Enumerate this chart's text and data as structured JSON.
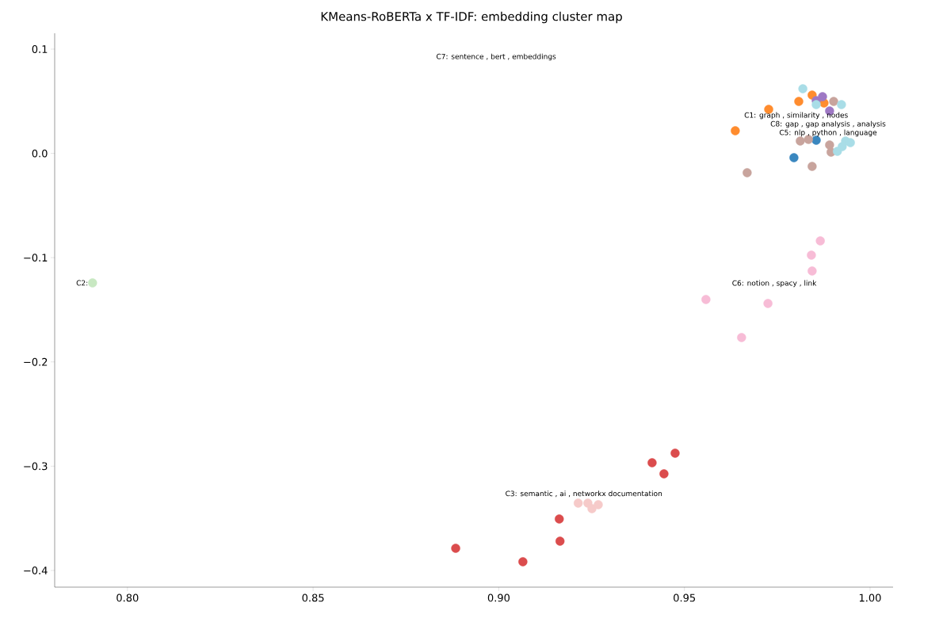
{
  "chart_data": {
    "type": "scatter",
    "title": "KMeans-RoBERTa x TF-IDF: embedding cluster map",
    "xlim": [
      0.7804,
      1.0062
    ],
    "ylim": [
      -0.416,
      0.1152
    ],
    "xticks": [
      {
        "value": 0.8,
        "label": "0.80"
      },
      {
        "value": 0.85,
        "label": "0.85"
      },
      {
        "value": 0.9,
        "label": "0.90"
      },
      {
        "value": 0.95,
        "label": "0.95"
      },
      {
        "value": 1.0,
        "label": "1.00"
      }
    ],
    "yticks": [
      {
        "value": -0.4,
        "label": "−0.4"
      },
      {
        "value": -0.3,
        "label": "−0.3"
      },
      {
        "value": -0.2,
        "label": "−0.2"
      },
      {
        "value": -0.1,
        "label": "−0.1"
      },
      {
        "value": 0.0,
        "label": "0.0"
      },
      {
        "value": 0.1,
        "label": "0.1"
      }
    ],
    "marker": "circle",
    "grid": false,
    "series": [
      {
        "color": "#db4c4d",
        "x": [
          0.9163,
          0.9165,
          0.8884,
          0.9065,
          0.9413,
          0.9475,
          0.9445
        ],
        "values": [
          -0.3506,
          -0.3719,
          -0.3787,
          -0.3916,
          -0.2967,
          -0.2875,
          -0.3073
        ]
      },
      {
        "color": "#f6cac9",
        "x": [
          0.9214,
          0.924,
          0.9251,
          0.9268
        ],
        "values": [
          -0.3354,
          -0.3354,
          -0.3407,
          -0.3369
        ]
      },
      {
        "color": "#f7bcd6",
        "x": [
          0.9866,
          0.9842,
          0.9844,
          0.9558,
          0.9725,
          0.9654
        ],
        "values": [
          -0.0839,
          -0.0976,
          -0.1128,
          -0.1401,
          -0.1439,
          -0.1766
        ]
      },
      {
        "color": "#c8e8c2",
        "x": [
          0.7906
        ],
        "values": [
          -0.1242
        ]
      },
      {
        "color": "#ff8c2e",
        "x": [
          0.9808,
          0.9844,
          0.9727,
          0.9637,
          0.9876
        ],
        "values": [
          0.0498,
          0.0559,
          0.0422,
          0.0217,
          0.0483
        ]
      },
      {
        "color": "#3a87bf",
        "x": [
          0.9795,
          0.9855
        ],
        "values": [
          -0.0041,
          0.0126
        ]
      },
      {
        "color": "#9e78c4",
        "x": [
          0.9872,
          0.9855,
          0.9891
        ],
        "values": [
          0.0544,
          0.0506,
          0.0407
        ]
      },
      {
        "color": "#c8a49d",
        "x": [
          0.9891,
          0.9895,
          0.9812,
          0.9834,
          0.9902,
          0.9669,
          0.9844
        ],
        "values": [
          0.0081,
          0.0012,
          0.0119,
          0.0134,
          0.0498,
          -0.0185,
          -0.0125
        ]
      },
      {
        "color": "#a9dde7",
        "x": [
          0.9819,
          0.9923,
          0.9855,
          0.9934,
          0.9912,
          0.9947,
          0.9925
        ],
        "values": [
          0.062,
          0.0468,
          0.0468,
          0.0119,
          0.002,
          0.0103,
          0.0065
        ]
      }
    ],
    "annotations": [
      "C7: sentence ,  bert ,  embeddings",
      "C6: notion ,  spacy ,  link",
      "C3: semantic ,  ai ,  networkx documentation",
      "C2:",
      "C1: graph ,  similarity ,  nodes",
      "C5: nlp ,  python ,  language",
      "C8: gap ,  gap analysis ,  analysis"
    ]
  }
}
